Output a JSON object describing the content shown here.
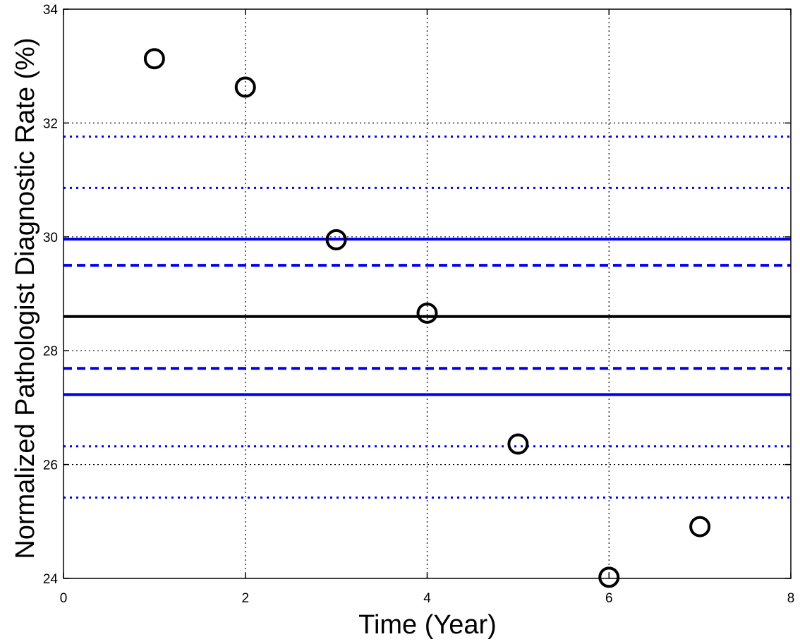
{
  "chart_data": {
    "type": "scatter",
    "title": "",
    "xlabel": "Time (Year)",
    "ylabel": "Normalized Pathologist Diagnostic Rate (%)",
    "xlim": [
      0,
      8
    ],
    "ylim": [
      24,
      34
    ],
    "xticks": [
      0,
      2,
      4,
      6,
      8
    ],
    "yticks": [
      24,
      26,
      28,
      30,
      32,
      34
    ],
    "grid": true,
    "legend": "none",
    "points": {
      "x": [
        1,
        2,
        3,
        4,
        5,
        6,
        7
      ],
      "y": [
        33.13,
        32.63,
        29.95,
        28.66,
        26.36,
        24.02,
        24.91
      ],
      "marker": "open-circle",
      "color": "#000000"
    },
    "reference_lines": [
      {
        "kind": "mean",
        "y": 28.6,
        "style": "solid",
        "color": "#000000"
      },
      {
        "kind": "limit",
        "y": 29.96,
        "style": "solid",
        "color": "#0000ee"
      },
      {
        "kind": "limit",
        "y": 27.23,
        "style": "solid",
        "color": "#0000ee"
      },
      {
        "kind": "limit",
        "y": 29.5,
        "style": "dashed",
        "color": "#0000ee"
      },
      {
        "kind": "limit",
        "y": 27.69,
        "style": "dashed",
        "color": "#0000ee"
      },
      {
        "kind": "limit",
        "y": 31.76,
        "style": "dotted",
        "color": "#0000ee"
      },
      {
        "kind": "limit",
        "y": 30.86,
        "style": "dotted",
        "color": "#0000ee"
      },
      {
        "kind": "limit",
        "y": 26.32,
        "style": "dotted",
        "color": "#0000ee"
      },
      {
        "kind": "limit",
        "y": 25.42,
        "style": "dotted",
        "color": "#0000ee"
      }
    ]
  }
}
